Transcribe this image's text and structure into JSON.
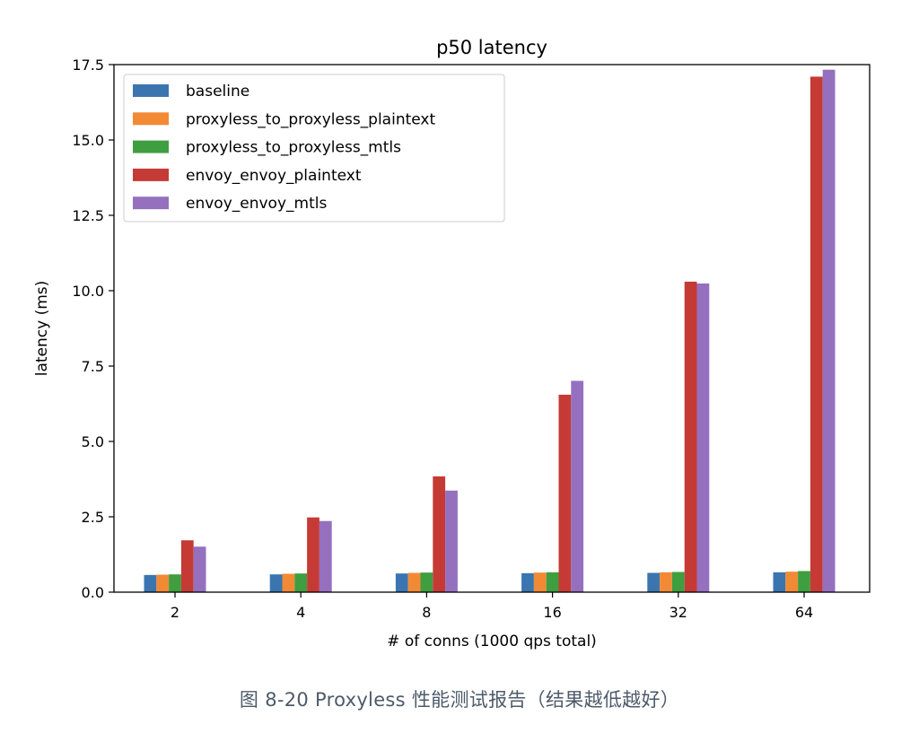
{
  "chart_data": {
    "type": "bar",
    "title": "p50 latency",
    "xlabel": "# of conns (1000 qps total)",
    "ylabel": "latency (ms)",
    "categories": [
      "2",
      "4",
      "8",
      "16",
      "32",
      "64"
    ],
    "ylim": [
      0,
      17.5
    ],
    "yticks": [
      "0.0",
      "2.5",
      "5.0",
      "7.5",
      "10.0",
      "12.5",
      "15.0",
      "17.5"
    ],
    "grid": false,
    "legend": "top-left",
    "series": [
      {
        "name": "baseline",
        "color": "#3a75b0",
        "values": [
          0.57,
          0.59,
          0.62,
          0.63,
          0.64,
          0.66
        ]
      },
      {
        "name": "proxyless_to_proxyless_plaintext",
        "color": "#f28a35",
        "values": [
          0.58,
          0.61,
          0.64,
          0.65,
          0.66,
          0.68
        ]
      },
      {
        "name": "proxyless_to_proxyless_mtls",
        "color": "#3f9e3f",
        "values": [
          0.59,
          0.62,
          0.65,
          0.66,
          0.67,
          0.7
        ]
      },
      {
        "name": "envoy_envoy_plaintext",
        "color": "#c63a35",
        "values": [
          1.72,
          2.48,
          3.84,
          6.55,
          10.3,
          17.1
        ]
      },
      {
        "name": "envoy_envoy_mtls",
        "color": "#9570bf",
        "values": [
          1.51,
          2.36,
          3.37,
          7.01,
          10.24,
          17.33
        ]
      }
    ]
  },
  "caption": "图 8-20 Proxyless 性能测试报告（结果越低越好）"
}
